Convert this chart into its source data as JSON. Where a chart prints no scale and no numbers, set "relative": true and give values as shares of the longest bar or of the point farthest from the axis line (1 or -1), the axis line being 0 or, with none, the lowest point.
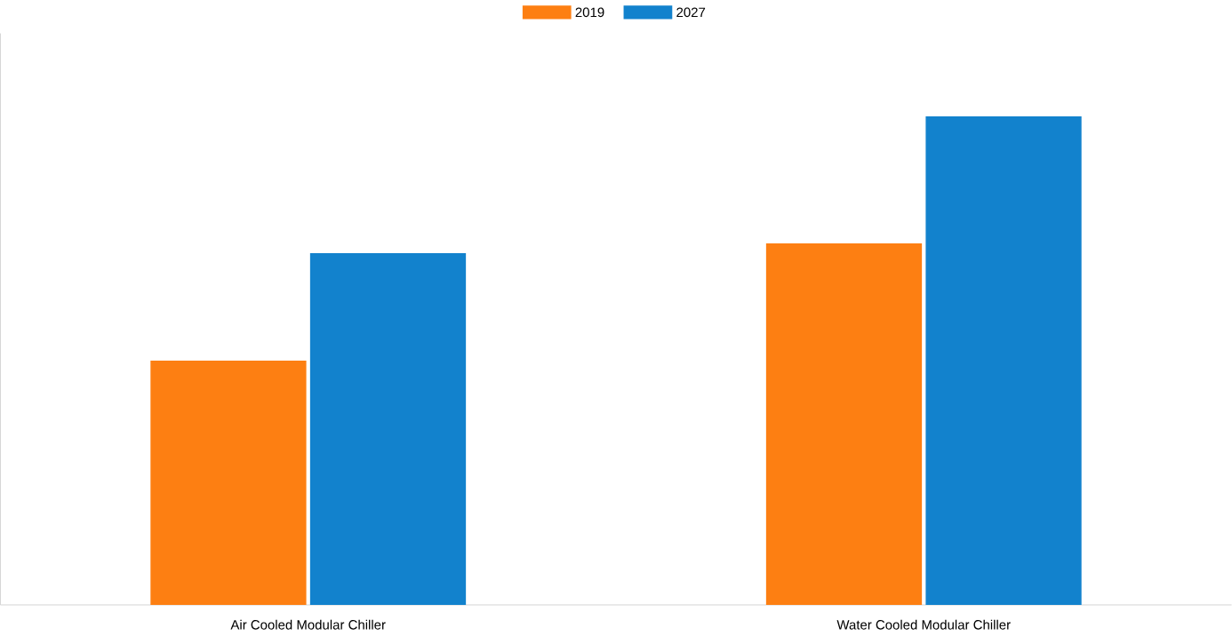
{
  "chart_data": {
    "type": "bar",
    "relative": true,
    "categories": [
      "Air Cooled Modular Chiller",
      "Water Cooled Modular Chiller"
    ],
    "series": [
      {
        "name": "2019",
        "color": "#fd7f12",
        "values": [
          0.5,
          0.74
        ]
      },
      {
        "name": "2027",
        "color": "#1282cd",
        "values": [
          0.72,
          1.0
        ]
      }
    ],
    "legend": "top"
  }
}
